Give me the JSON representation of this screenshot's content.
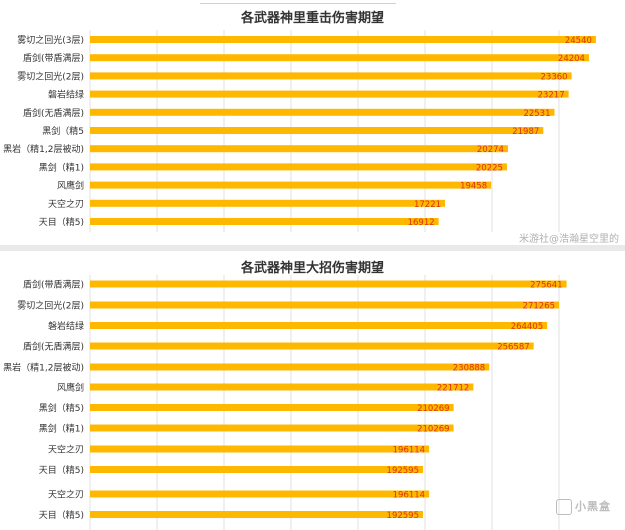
{
  "chart_data": [
    {
      "type": "bar",
      "orientation": "horizontal",
      "title": "各武器神里重击伤害期望",
      "categories": [
        "雾切之回光(3层)",
        "盾剑(带盾满层)",
        "雾切之回光(2层)",
        "磐岩结绿",
        "盾剑(无盾满层)",
        "黑剑（精5",
        "黑岩（精1,2层被动)",
        "黑剑（精1)",
        "风鹰剑",
        "天空之刃",
        "天目（精5)"
      ],
      "values": [
        24540,
        24204,
        23360,
        23217,
        22531,
        21987,
        20274,
        20225,
        19458,
        17221,
        16912
      ],
      "xlim": [
        0,
        26000
      ],
      "grid": true,
      "bar_color": "#ffb800",
      "label_color": "#e03010"
    },
    {
      "type": "bar",
      "orientation": "horizontal",
      "title": "各武器神里大招伤害期望",
      "categories": [
        "盾剑(带盾满层)",
        "雾切之回光(2层)",
        "磐岩结绿",
        "盾剑(无盾满层)",
        "黑岩（精1,2层被动)",
        "风鹰剑",
        "黑剑（精5)",
        "黑剑（精1)",
        "天空之刃",
        "天目（精5)",
        "天空之刃",
        "天目（精5)"
      ],
      "values": [
        275641,
        271265,
        264405,
        256587,
        230888,
        221712,
        210269,
        210269,
        196114,
        192595,
        196114,
        192595
      ],
      "xlim": [
        0,
        310000
      ],
      "grid": true,
      "bar_color": "#ffb800",
      "label_color": "#e03010"
    }
  ],
  "watermark": {
    "text": "米游社@浩瀚星空里的",
    "brand": "小黑盒",
    "brand_icon": "box-logo-icon"
  }
}
